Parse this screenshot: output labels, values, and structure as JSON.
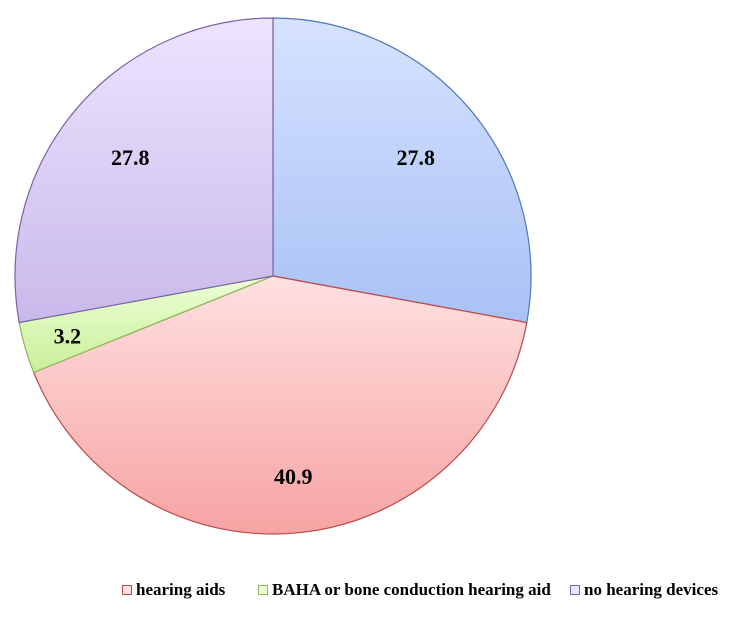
{
  "chart_data": {
    "type": "pie",
    "slices": [
      {
        "label": "",
        "value": 27.8,
        "color_light": "#d6e2ff",
        "color_dark": "#a9c1f5",
        "stroke": "#4f78b8"
      },
      {
        "label": "hearing aids",
        "value": 40.9,
        "color_light": "#ffe0e0",
        "color_dark": "#f7a3a3",
        "stroke": "#b94a4a"
      },
      {
        "label": "BAHA or bone conduction hearing aid",
        "value": 3.2,
        "color_light": "#edffd6",
        "color_dark": "#c9ef9a",
        "stroke": "#8db85a"
      },
      {
        "label": "no hearing devices",
        "value": 27.8,
        "color_light": "#ece4ff",
        "color_dark": "#c9b9ea",
        "stroke": "#7a62a8"
      }
    ],
    "data_labels": [
      "27.8",
      "40.9",
      "3.2",
      "27.8"
    ],
    "legend_position": "bottom"
  },
  "legend": {
    "items": [
      {
        "label": "hearing aids",
        "swatch_fill": "#ffe0e0",
        "swatch_stroke": "#b94a4a"
      },
      {
        "label": "BAHA or bone conduction hearing aid",
        "swatch_fill": "#edffd6",
        "swatch_stroke": "#8db85a"
      },
      {
        "label": "no hearing devices",
        "swatch_fill": "#ece4ff",
        "swatch_stroke": "#7a62a8"
      }
    ]
  }
}
